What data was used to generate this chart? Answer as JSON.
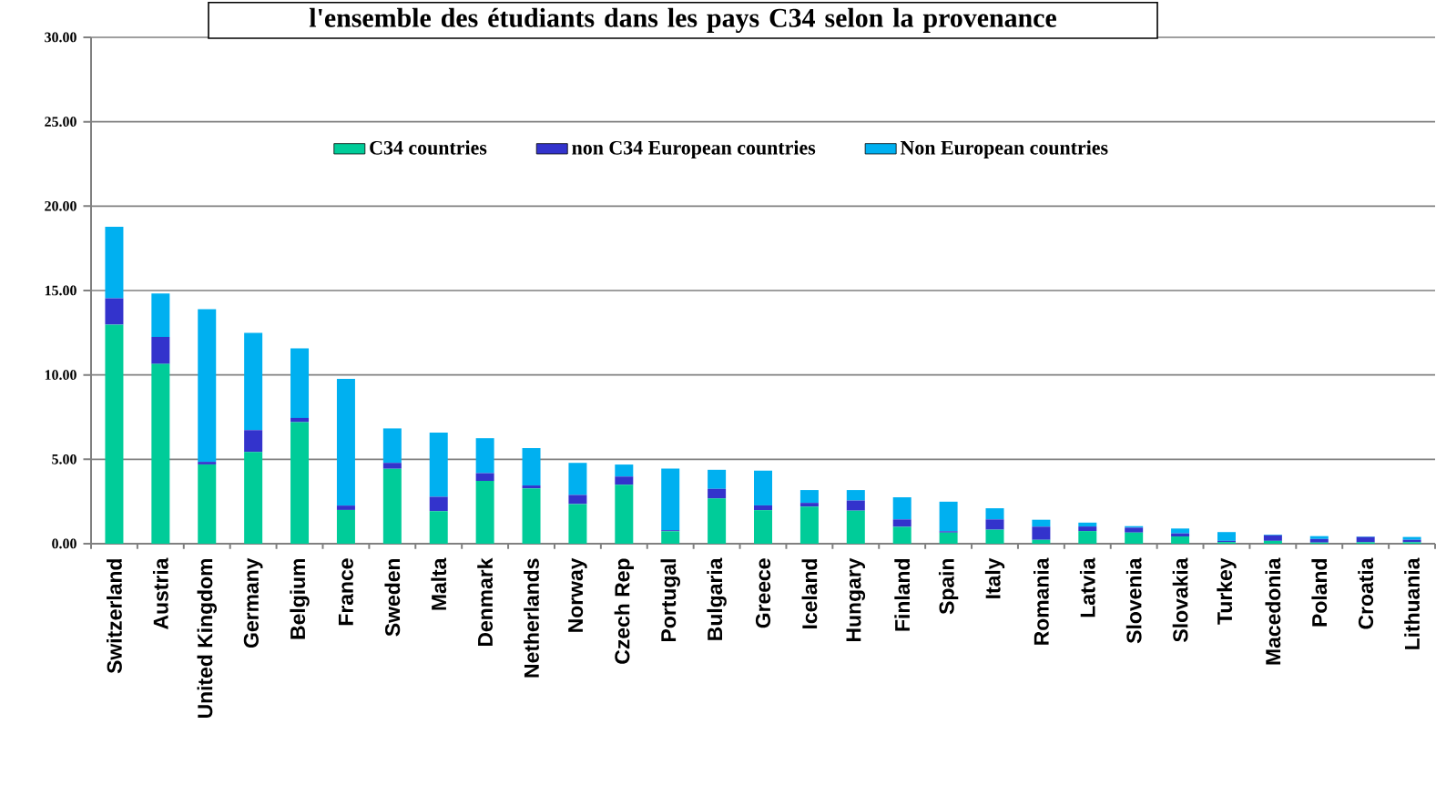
{
  "chart_data": {
    "type": "bar",
    "stacked": true,
    "title": "l'ensemble des étudiants dans les pays C34 selon la provenance",
    "categories": [
      "Switzerland",
      "Austria",
      "United Kingdom",
      "Germany",
      "Belgium",
      "France",
      "Sweden",
      "Malta",
      "Denmark",
      "Netherlands",
      "Norway",
      "Czech Rep",
      "Portugal",
      "Bulgaria",
      "Greece",
      "Iceland",
      "Hungary",
      "Finland",
      "Spain",
      "Italy",
      "Romania",
      "Latvia",
      "Slovenia",
      "Slovakia",
      "Turkey",
      "Macedonia",
      "Poland",
      "Croatia",
      "Lithuania"
    ],
    "series": [
      {
        "name": "C34 countries",
        "color": "#00cc99",
        "values": [
          12.98,
          10.65,
          4.7,
          5.43,
          7.2,
          2.0,
          4.44,
          1.93,
          3.72,
          3.28,
          2.35,
          3.49,
          0.74,
          2.68,
          1.99,
          2.2,
          1.96,
          1.0,
          0.66,
          0.83,
          0.23,
          0.75,
          0.66,
          0.43,
          0.1,
          0.17,
          0.07,
          0.09,
          0.09
        ]
      },
      {
        "name": "non C34 European countries",
        "color": "#3333cc",
        "values": [
          1.56,
          1.6,
          0.15,
          1.3,
          0.25,
          0.26,
          0.35,
          0.85,
          0.46,
          0.17,
          0.54,
          0.49,
          0.06,
          0.57,
          0.28,
          0.22,
          0.6,
          0.44,
          0.08,
          0.61,
          0.78,
          0.27,
          0.29,
          0.18,
          0.07,
          0.33,
          0.21,
          0.31,
          0.14
        ]
      },
      {
        "name": "Non European countries",
        "color": "#00b0f0",
        "values": [
          4.24,
          2.57,
          9.05,
          5.76,
          4.13,
          7.5,
          2.04,
          3.8,
          2.07,
          2.22,
          1.9,
          0.71,
          3.65,
          1.13,
          2.06,
          0.76,
          0.62,
          1.31,
          1.75,
          0.66,
          0.41,
          0.23,
          0.09,
          0.29,
          0.52,
          0.04,
          0.17,
          0.03,
          0.17
        ]
      }
    ],
    "ylim": [
      0,
      30
    ],
    "yticks": [
      {
        "value": 0,
        "label": "0.00"
      },
      {
        "value": 5,
        "label": "5.00"
      },
      {
        "value": 10,
        "label": "10.00"
      },
      {
        "value": 15,
        "label": "15.00"
      },
      {
        "value": 20,
        "label": "20.00"
      },
      {
        "value": 25,
        "label": "25.00"
      },
      {
        "value": 30,
        "label": "30.00"
      }
    ],
    "grid": "y",
    "legend": "top"
  }
}
